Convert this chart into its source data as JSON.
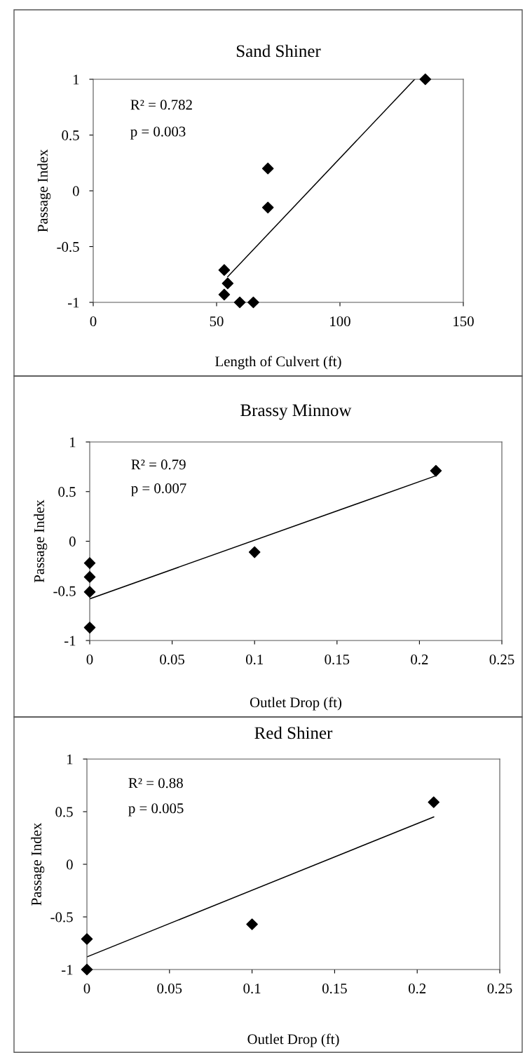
{
  "chart_data": [
    {
      "type": "scatter",
      "title": "Sand Shiner",
      "xlabel": "Length of Culvert (ft)",
      "ylabel": "Passage Index",
      "grid": false,
      "xlim": [
        0,
        150
      ],
      "xticks": [
        0,
        50,
        100,
        150
      ],
      "ylim": [
        -1,
        1
      ],
      "yticks": [
        -1,
        -0.5,
        0,
        0.5,
        1
      ],
      "annotations": [
        "R² = 0.782",
        "p = 0.003"
      ],
      "series": [
        {
          "marker": "diamond",
          "color": "#000000",
          "x": [
            53.1,
            54.5,
            53.1,
            59.4,
            64.9,
            70.8,
            70.8,
            134.6
          ],
          "values": [
            -0.71,
            -0.83,
            -0.93,
            -1.0,
            -1.0,
            0.2,
            -0.15,
            1.0
          ]
        },
        {
          "type": "line",
          "marker": "none",
          "color": "#000000",
          "x": [
            54.5,
            130.3
          ],
          "values": [
            -0.77,
            1.0
          ]
        }
      ]
    },
    {
      "type": "scatter",
      "title": "Brassy Minnow",
      "xlabel": "Outlet Drop (ft)",
      "ylabel": "Passage Index",
      "grid": false,
      "xlim": [
        0,
        0.25
      ],
      "xticks": [
        0,
        0.05,
        0.1,
        0.15,
        0.2,
        0.25
      ],
      "ylim": [
        -1,
        1
      ],
      "yticks": [
        -1,
        -0.5,
        0,
        0.5,
        1
      ],
      "annotations": [
        "R² = 0.79",
        "p = 0.007"
      ],
      "series": [
        {
          "marker": "diamond",
          "color": "#000000",
          "x": [
            0,
            0,
            0,
            0,
            0.1,
            0.21
          ],
          "values": [
            -0.22,
            -0.36,
            -0.51,
            -0.87,
            -0.11,
            0.71
          ]
        },
        {
          "type": "line",
          "marker": "none",
          "color": "#000000",
          "x": [
            0,
            0.21
          ],
          "values": [
            -0.58,
            0.66
          ]
        }
      ]
    },
    {
      "type": "scatter",
      "title": "Red Shiner",
      "xlabel": "Outlet Drop (ft)",
      "ylabel": "Passage Index",
      "grid": false,
      "xlim": [
        0,
        0.25
      ],
      "xticks": [
        0,
        0.05,
        0.1,
        0.15,
        0.2,
        0.25
      ],
      "ylim": [
        -1,
        1
      ],
      "yticks": [
        -1,
        -0.5,
        0,
        0.5,
        1
      ],
      "annotations": [
        "R² = 0.88",
        "p = 0.005"
      ],
      "series": [
        {
          "marker": "diamond",
          "color": "#000000",
          "x": [
            0,
            0,
            0.1,
            0.21
          ],
          "values": [
            -0.71,
            -1.0,
            -0.57,
            0.59
          ]
        },
        {
          "type": "line",
          "marker": "none",
          "color": "#000000",
          "x": [
            0,
            0.21
          ],
          "values": [
            -0.88,
            0.45
          ]
        }
      ]
    }
  ]
}
